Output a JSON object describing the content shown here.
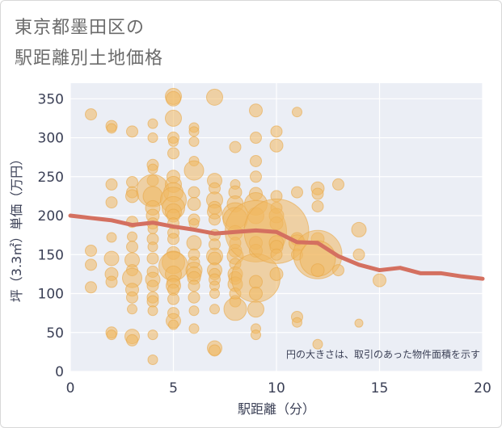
{
  "title_lines": [
    "東京都墨田区の",
    "駅距離別土地価格"
  ],
  "chart_data": {
    "type": "scatter",
    "xlabel": "駅距離（分）",
    "ylabel": "坪（3.3㎡）単価（万円）",
    "xlim": [
      0,
      20
    ],
    "ylim": [
      0,
      370
    ],
    "x_ticks": [
      0,
      5,
      10,
      15,
      20
    ],
    "y_ticks": [
      0,
      50,
      100,
      150,
      200,
      250,
      300,
      350
    ],
    "grid": true,
    "note": "円の大きさは、取引のあった物件面積を示す",
    "colors": {
      "bubble": "#f0b860",
      "bubble_stroke": "#e8a84a",
      "trend": "#d47060",
      "plot_bg": "#ebeef5",
      "grid": "#ffffff"
    },
    "points": [
      [
        1,
        330,
        7
      ],
      [
        1,
        155,
        7
      ],
      [
        1,
        137,
        7
      ],
      [
        1,
        108,
        7
      ],
      [
        2,
        315,
        7
      ],
      [
        2,
        312,
        6
      ],
      [
        2,
        240,
        7
      ],
      [
        2,
        217,
        7
      ],
      [
        2,
        172,
        6
      ],
      [
        2,
        145,
        9
      ],
      [
        2,
        125,
        8
      ],
      [
        2,
        115,
        7
      ],
      [
        2,
        50,
        7
      ],
      [
        2,
        47,
        6
      ],
      [
        3,
        308,
        7
      ],
      [
        3,
        243,
        7
      ],
      [
        3,
        230,
        7
      ],
      [
        3,
        225,
        8
      ],
      [
        3,
        192,
        7
      ],
      [
        3,
        173,
        6
      ],
      [
        3,
        160,
        7
      ],
      [
        3,
        143,
        9
      ],
      [
        3,
        130,
        7
      ],
      [
        3,
        120,
        12
      ],
      [
        3,
        105,
        8
      ],
      [
        3,
        95,
        7
      ],
      [
        3,
        80,
        6
      ],
      [
        3,
        45,
        9
      ],
      [
        3,
        40,
        7
      ],
      [
        4,
        318,
        6
      ],
      [
        4,
        300,
        6
      ],
      [
        4,
        265,
        7
      ],
      [
        4,
        260,
        6
      ],
      [
        4,
        245,
        7
      ],
      [
        4,
        232,
        20
      ],
      [
        4,
        225,
        12
      ],
      [
        4,
        210,
        9
      ],
      [
        4,
        200,
        8
      ],
      [
        4,
        190,
        7
      ],
      [
        4,
        183,
        6
      ],
      [
        4,
        170,
        7
      ],
      [
        4,
        160,
        6
      ],
      [
        4,
        145,
        7
      ],
      [
        4,
        128,
        7
      ],
      [
        4,
        118,
        9
      ],
      [
        4,
        110,
        7
      ],
      [
        4,
        95,
        7
      ],
      [
        4,
        90,
        7
      ],
      [
        4,
        78,
        6
      ],
      [
        4,
        47,
        6
      ],
      [
        4,
        15,
        6
      ],
      [
        5,
        353,
        10
      ],
      [
        5,
        350,
        9
      ],
      [
        5,
        325,
        10
      ],
      [
        5,
        300,
        7
      ],
      [
        5,
        295,
        6
      ],
      [
        5,
        280,
        7
      ],
      [
        5,
        250,
        8
      ],
      [
        5,
        240,
        10
      ],
      [
        5,
        230,
        12
      ],
      [
        5,
        220,
        16
      ],
      [
        5,
        210,
        14
      ],
      [
        5,
        205,
        10
      ],
      [
        5,
        200,
        8
      ],
      [
        5,
        190,
        7
      ],
      [
        5,
        178,
        7
      ],
      [
        5,
        170,
        7
      ],
      [
        5,
        152,
        8
      ],
      [
        5,
        140,
        14
      ],
      [
        5,
        135,
        18
      ],
      [
        5,
        125,
        10
      ],
      [
        5,
        115,
        8
      ],
      [
        5,
        110,
        9
      ],
      [
        5,
        105,
        7
      ],
      [
        5,
        93,
        7
      ],
      [
        5,
        75,
        7
      ],
      [
        5,
        65,
        9
      ],
      [
        5,
        60,
        6
      ],
      [
        6,
        313,
        6
      ],
      [
        6,
        308,
        6
      ],
      [
        6,
        295,
        6
      ],
      [
        6,
        270,
        6
      ],
      [
        6,
        258,
        12
      ],
      [
        6,
        230,
        7
      ],
      [
        6,
        215,
        8
      ],
      [
        6,
        195,
        7
      ],
      [
        6,
        190,
        6
      ],
      [
        6,
        165,
        9
      ],
      [
        6,
        150,
        7
      ],
      [
        6,
        140,
        7
      ],
      [
        6,
        130,
        10
      ],
      [
        6,
        125,
        9
      ],
      [
        6,
        120,
        8
      ],
      [
        6,
        110,
        7
      ],
      [
        6,
        95,
        7
      ],
      [
        6,
        78,
        6
      ],
      [
        6,
        55,
        6
      ],
      [
        7,
        352,
        10
      ],
      [
        7,
        245,
        9
      ],
      [
        7,
        235,
        7
      ],
      [
        7,
        220,
        10
      ],
      [
        7,
        210,
        8
      ],
      [
        7,
        205,
        9
      ],
      [
        7,
        195,
        7
      ],
      [
        7,
        175,
        7
      ],
      [
        7,
        163,
        7
      ],
      [
        7,
        148,
        10
      ],
      [
        7,
        145,
        8
      ],
      [
        7,
        130,
        9
      ],
      [
        7,
        125,
        7
      ],
      [
        7,
        118,
        7
      ],
      [
        7,
        110,
        6
      ],
      [
        7,
        100,
        6
      ],
      [
        7,
        80,
        6
      ],
      [
        7,
        30,
        9
      ],
      [
        7,
        27,
        7
      ],
      [
        8,
        288,
        7
      ],
      [
        8,
        240,
        6
      ],
      [
        8,
        230,
        8
      ],
      [
        8,
        215,
        10
      ],
      [
        8,
        200,
        16
      ],
      [
        8,
        195,
        15
      ],
      [
        8,
        178,
        9
      ],
      [
        8,
        165,
        7
      ],
      [
        8,
        155,
        8
      ],
      [
        8,
        148,
        10
      ],
      [
        8,
        138,
        7
      ],
      [
        8,
        125,
        9
      ],
      [
        8,
        120,
        8
      ],
      [
        8,
        112,
        9
      ],
      [
        8,
        100,
        7
      ],
      [
        8,
        90,
        7
      ],
      [
        8,
        80,
        14
      ],
      [
        9,
        335,
        8
      ],
      [
        9,
        300,
        7
      ],
      [
        9,
        270,
        7
      ],
      [
        9,
        250,
        7
      ],
      [
        9,
        228,
        8
      ],
      [
        9,
        215,
        14
      ],
      [
        9,
        200,
        10
      ],
      [
        9,
        180,
        38
      ],
      [
        9,
        165,
        8
      ],
      [
        9,
        155,
        8
      ],
      [
        9,
        120,
        30
      ],
      [
        9,
        115,
        8
      ],
      [
        9,
        100,
        8
      ],
      [
        9,
        80,
        10
      ],
      [
        9,
        55,
        6
      ],
      [
        9,
        47,
        6
      ],
      [
        10,
        308,
        7
      ],
      [
        10,
        290,
        8
      ],
      [
        10,
        225,
        7
      ],
      [
        10,
        210,
        7
      ],
      [
        10,
        200,
        9
      ],
      [
        10,
        190,
        8
      ],
      [
        10,
        180,
        40
      ],
      [
        10,
        165,
        9
      ],
      [
        10,
        160,
        8
      ],
      [
        10,
        150,
        7
      ],
      [
        10,
        125,
        8
      ],
      [
        11,
        333,
        6
      ],
      [
        11,
        230,
        7
      ],
      [
        11,
        170,
        8
      ],
      [
        11,
        165,
        10
      ],
      [
        11,
        150,
        7
      ],
      [
        11,
        70,
        7
      ],
      [
        11,
        63,
        6
      ],
      [
        12,
        235,
        8
      ],
      [
        12,
        228,
        7
      ],
      [
        12,
        212,
        7
      ],
      [
        12,
        170,
        8
      ],
      [
        12,
        150,
        30
      ],
      [
        12,
        145,
        22
      ],
      [
        12,
        130,
        8
      ],
      [
        12,
        35,
        6
      ],
      [
        13,
        240,
        7
      ],
      [
        13,
        130,
        7
      ],
      [
        14,
        182,
        9
      ],
      [
        14,
        150,
        7
      ],
      [
        14,
        62,
        5
      ],
      [
        15,
        117,
        8
      ]
    ],
    "trend": [
      [
        0,
        200
      ],
      [
        1,
        197
      ],
      [
        2,
        194
      ],
      [
        3,
        188
      ],
      [
        4,
        191
      ],
      [
        5,
        186
      ],
      [
        6,
        182
      ],
      [
        7,
        177
      ],
      [
        8,
        179
      ],
      [
        9,
        181
      ],
      [
        10,
        179
      ],
      [
        11,
        166
      ],
      [
        12,
        165
      ],
      [
        13,
        148
      ],
      [
        14,
        137
      ],
      [
        15,
        130
      ],
      [
        16,
        133
      ],
      [
        17,
        126
      ],
      [
        18,
        126
      ],
      [
        19,
        122
      ],
      [
        20,
        119
      ]
    ]
  }
}
